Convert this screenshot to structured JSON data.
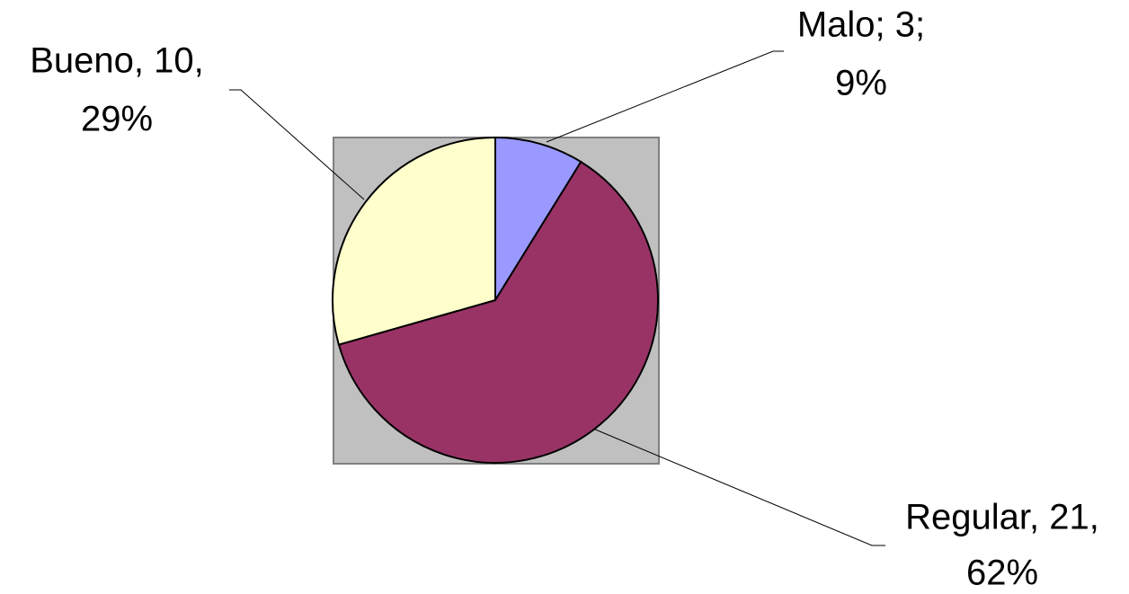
{
  "chart_data": {
    "type": "pie",
    "categories": [
      "Malo",
      "Regular",
      "Bueno"
    ],
    "values": [
      3,
      21,
      10
    ],
    "value_labels": [
      [
        "Malo; 3;",
        "9%"
      ],
      [
        "Regular, 21,",
        "62%"
      ],
      [
        "Bueno, 10,",
        "29%"
      ]
    ],
    "colors": [
      "#9999ff",
      "#993366",
      "#ffffcc"
    ]
  }
}
